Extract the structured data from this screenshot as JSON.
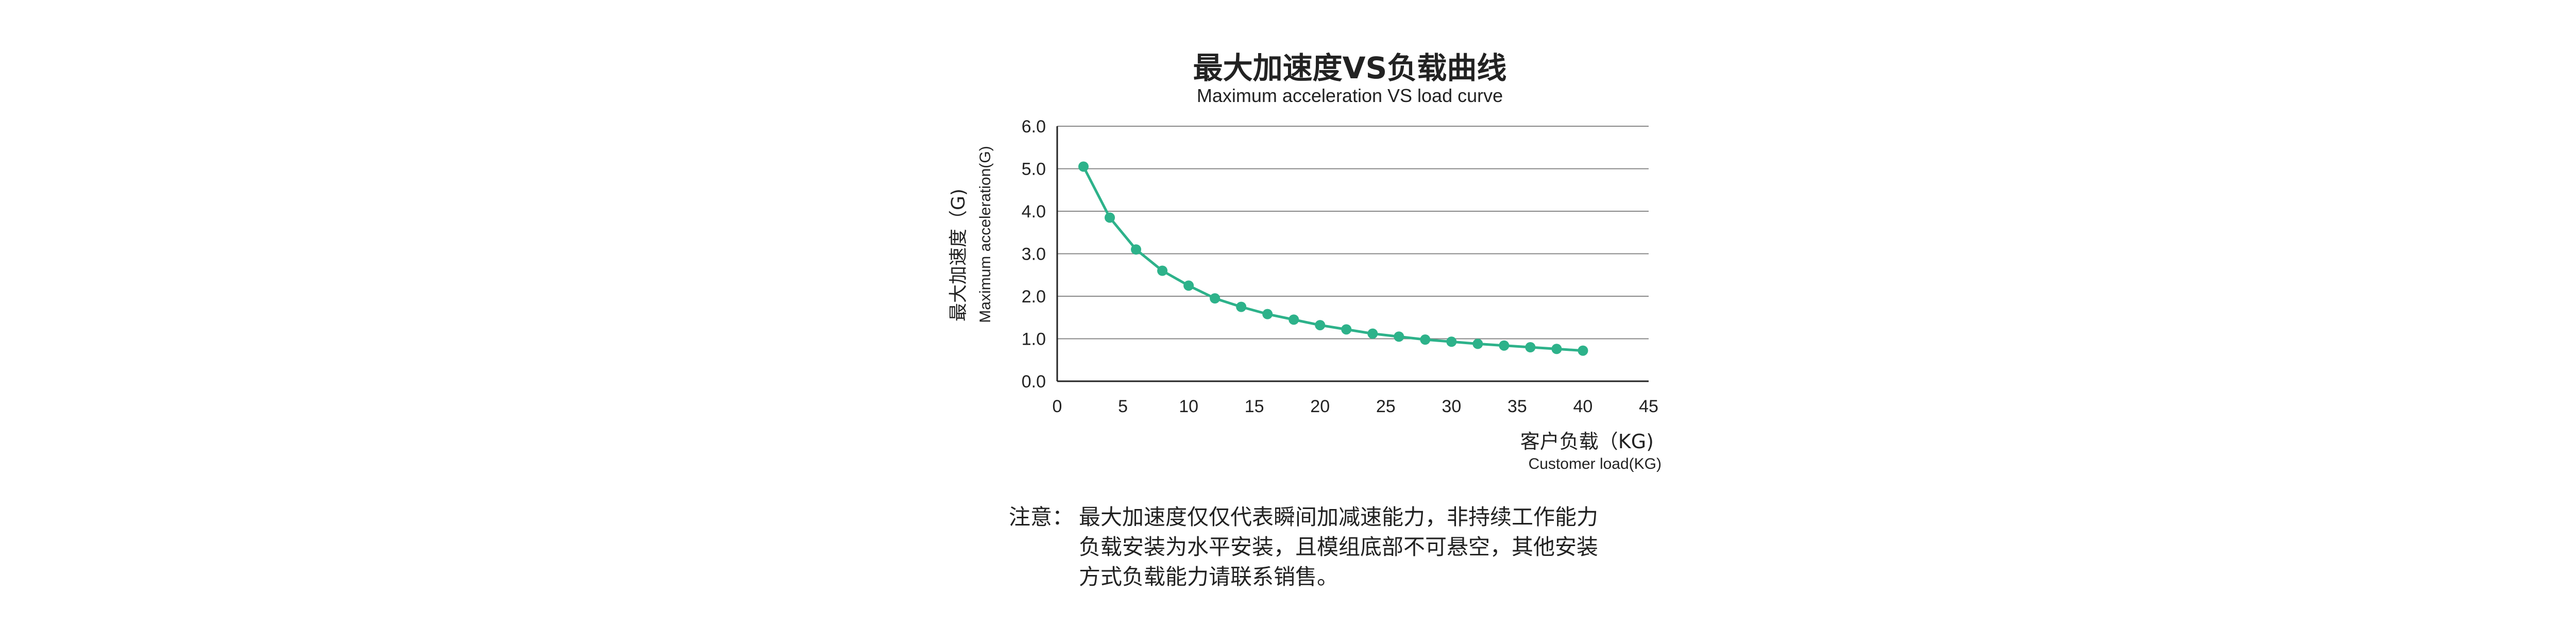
{
  "chart_data": {
    "type": "line",
    "title": "最大加速度VS负载曲线",
    "subtitle": "Maximum acceleration VS load curve",
    "ylabel": "最大加速度（G)",
    "ylabel_en": "Maximum acceleration(G)",
    "xlabel": "客户负载（KG)",
    "xlabel_en": "Customer load(KG)",
    "xlim": [
      0,
      45
    ],
    "ylim": [
      0,
      6
    ],
    "x_ticks": [
      0,
      5,
      10,
      15,
      20,
      25,
      30,
      35,
      40,
      45
    ],
    "x_tick_labels": [
      "0",
      "5",
      "10",
      "15",
      "20",
      "25",
      "30",
      "35",
      "40",
      "45"
    ],
    "y_ticks": [
      0,
      1,
      2,
      3,
      4,
      5,
      6
    ],
    "y_tick_labels": [
      "0.0",
      "1.0",
      "2.0",
      "3.0",
      "4.0",
      "5.0",
      "6.0"
    ],
    "grid": "horizontal",
    "legend": "none",
    "series": [
      {
        "color": "#2db28a",
        "points": [
          {
            "x": 2,
            "y": 5.05
          },
          {
            "x": 4,
            "y": 3.85
          },
          {
            "x": 6,
            "y": 3.1
          },
          {
            "x": 8,
            "y": 2.6
          },
          {
            "x": 10,
            "y": 2.25
          },
          {
            "x": 12,
            "y": 1.95
          },
          {
            "x": 14,
            "y": 1.75
          },
          {
            "x": 16,
            "y": 1.58
          },
          {
            "x": 18,
            "y": 1.45
          },
          {
            "x": 20,
            "y": 1.32
          },
          {
            "x": 22,
            "y": 1.22
          },
          {
            "x": 24,
            "y": 1.12
          },
          {
            "x": 26,
            "y": 1.05
          },
          {
            "x": 28,
            "y": 0.98
          },
          {
            "x": 30,
            "y": 0.93
          },
          {
            "x": 32,
            "y": 0.88
          },
          {
            "x": 34,
            "y": 0.84
          },
          {
            "x": 36,
            "y": 0.8
          },
          {
            "x": 38,
            "y": 0.76
          },
          {
            "x": 40,
            "y": 0.72
          }
        ]
      }
    ]
  },
  "note": {
    "label": "注意：",
    "lines": [
      "最大加速度仅仅代表瞬间加减速能力，非持续工作能力",
      "负载安装为水平安装，且模组底部不可悬空，其他安装",
      "方式负载能力请联系销售。"
    ]
  },
  "colors": {
    "line": "#2db28a",
    "grid": "#888888",
    "axis": "#222222",
    "text": "#222222"
  }
}
